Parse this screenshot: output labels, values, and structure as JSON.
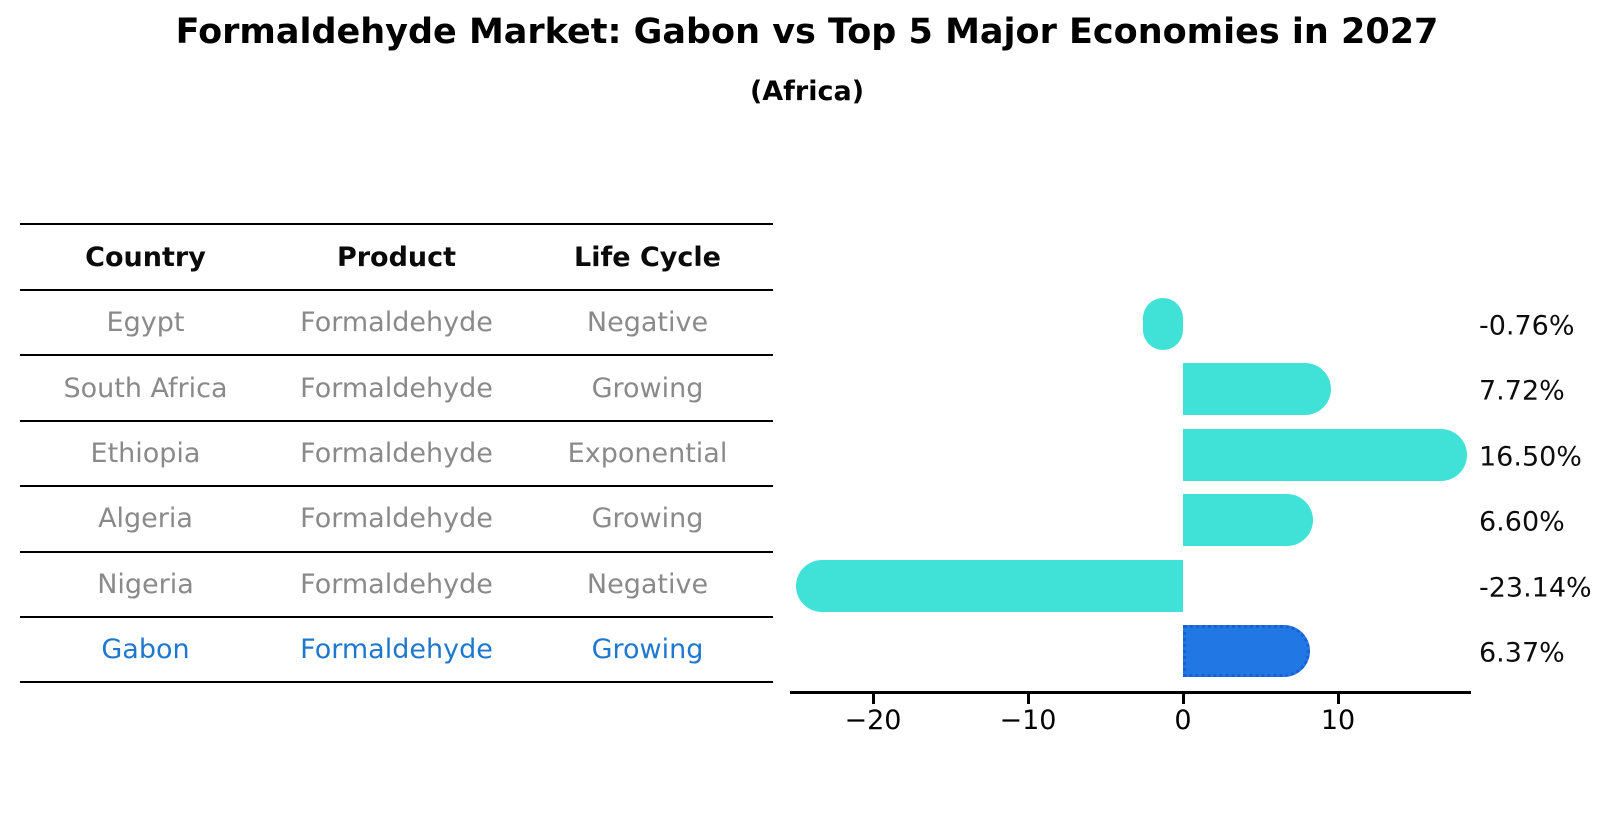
{
  "figure": {
    "title": "Formaldehyde Market: Gabon vs Top 5 Major Economies in 2027",
    "subtitle": "(Africa)"
  },
  "table": {
    "headers": [
      "Country",
      "Product",
      "Life Cycle"
    ],
    "header_text_color": "#0a0a0a",
    "row_text_color": "#8a8a8a",
    "highlight_text_color": "#1f78cf",
    "rows": [
      {
        "country": "Egypt",
        "product": "Formaldehyde",
        "life_cycle": "Negative",
        "highlighted": false
      },
      {
        "country": "South Africa",
        "product": "Formaldehyde",
        "life_cycle": "Growing",
        "highlighted": false
      },
      {
        "country": "Ethiopia",
        "product": "Formaldehyde",
        "life_cycle": "Exponential",
        "highlighted": false
      },
      {
        "country": "Algeria",
        "product": "Formaldehyde",
        "life_cycle": "Growing",
        "highlighted": false
      },
      {
        "country": "Nigeria",
        "product": "Formaldehyde",
        "life_cycle": "Negative",
        "highlighted": false
      },
      {
        "country": "Gabon",
        "product": "Formaldehyde",
        "life_cycle": "Growing",
        "highlighted": true
      }
    ]
  },
  "chart_data": {
    "type": "bar",
    "orientation": "horizontal",
    "title": "Formaldehyde Market: Gabon vs Top 5 Major Economies in 2027",
    "subtitle": "(Africa)",
    "categories": [
      "Egypt",
      "South Africa",
      "Ethiopia",
      "Algeria",
      "Nigeria",
      "Gabon"
    ],
    "values": [
      -0.76,
      7.72,
      16.5,
      6.6,
      -23.14,
      6.37
    ],
    "value_labels": [
      "-0.76%",
      "7.72%",
      "16.50%",
      "6.60%",
      "-23.14%",
      "6.37%"
    ],
    "xlabel": "",
    "ylabel": "",
    "xlim": [
      -25.3,
      18.6
    ],
    "x_ticks": [
      -20,
      -10,
      0,
      10
    ],
    "x_tick_labels": [
      "−20",
      "−10",
      "0",
      "10"
    ],
    "grid": false,
    "legend": false,
    "bar_color": "#40E2D8",
    "highlight_index": 5,
    "highlight_bar_color": "#2178E4",
    "highlight_border_color": "#1a5fd4",
    "axis_color": "#000000"
  }
}
